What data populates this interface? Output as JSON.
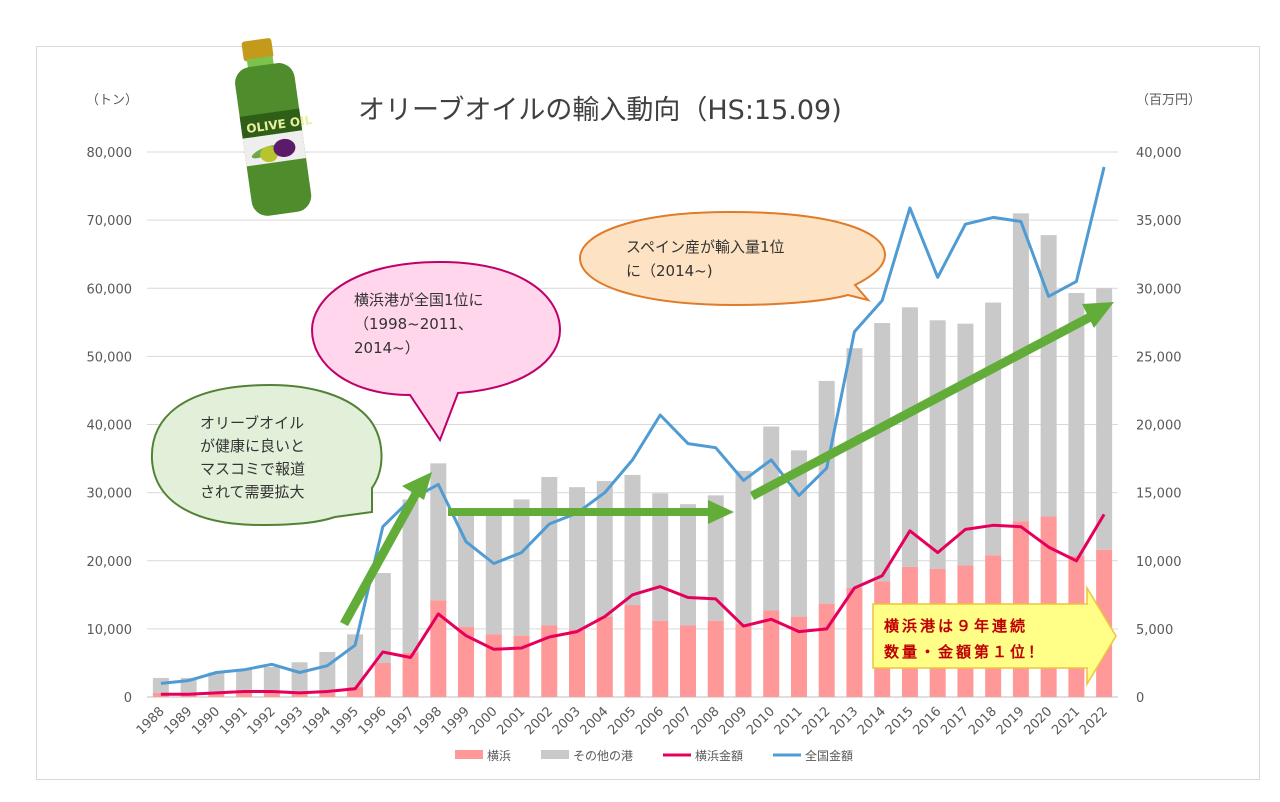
{
  "chart_data": {
    "type": "bar",
    "subtype": "stacked bar + dual-axis line",
    "title": "オリーブオイルの輸入動向（HS:15.09)",
    "xlabel": "",
    "ylabel_left": "（トン）",
    "ylabel_right": "（百万円）",
    "ylim_left": [
      0,
      80000
    ],
    "ylim_right": [
      0,
      40000
    ],
    "yticks_left": [
      "0",
      "10,000",
      "20,000",
      "30,000",
      "40,000",
      "50,000",
      "60,000",
      "70,000",
      "80,000"
    ],
    "yticks_right": [
      "0",
      "5,000",
      "10,000",
      "15,000",
      "20,000",
      "25,000",
      "30,000",
      "35,000",
      "40,000"
    ],
    "grid": true,
    "legend_position": "bottom",
    "categories": [
      "1988",
      "1989",
      "1990",
      "1991",
      "1992",
      "1993",
      "1994",
      "1995",
      "1996",
      "1997",
      "1998",
      "1999",
      "2000",
      "2001",
      "2002",
      "2003",
      "2004",
      "2005",
      "2006",
      "2007",
      "2008",
      "2009",
      "2010",
      "2011",
      "2012",
      "2013",
      "2014",
      "2015",
      "2016",
      "2017",
      "2018",
      "2019",
      "2020",
      "2021",
      "2022"
    ],
    "series": [
      {
        "name": "横浜",
        "type": "bar",
        "stack": "volume",
        "axis": "left",
        "color": "#ff9999",
        "values": [
          600,
          500,
          700,
          700,
          700,
          700,
          600,
          1500,
          5000,
          6500,
          14200,
          10300,
          9200,
          9000,
          10500,
          9900,
          11800,
          13500,
          11200,
          10500,
          11200,
          10700,
          12700,
          11800,
          13700,
          16000,
          17000,
          19100,
          18800,
          19300,
          20800,
          25800,
          26500,
          20700,
          21600
        ]
      },
      {
        "name": "その他の港",
        "type": "bar",
        "stack": "volume",
        "axis": "left",
        "color": "#c9c9c9",
        "values": [
          2200,
          2300,
          2900,
          3300,
          3700,
          4400,
          6000,
          7700,
          13200,
          22500,
          20100,
          17300,
          18000,
          20000,
          21800,
          20900,
          19900,
          19100,
          18700,
          17800,
          18400,
          22500,
          27000,
          24400,
          32700,
          35200,
          37900,
          38100,
          36500,
          35500,
          37100,
          45200,
          41300,
          38600,
          38400
        ]
      },
      {
        "name": "横浜金額",
        "type": "line",
        "axis": "right",
        "color": "#e6005c",
        "values": [
          200,
          200,
          300,
          400,
          400,
          300,
          400,
          600,
          3300,
          2900,
          6100,
          4500,
          3500,
          3600,
          4400,
          4800,
          5900,
          7500,
          8100,
          7300,
          7200,
          5200,
          5700,
          4800,
          5000,
          8000,
          8900,
          12200,
          10600,
          12300,
          12600,
          12500,
          11000,
          10000,
          13400
        ]
      },
      {
        "name": "全国金額",
        "type": "line",
        "axis": "right",
        "color": "#4f9bd4",
        "values": [
          1000,
          1200,
          1800,
          2000,
          2400,
          1800,
          2300,
          3800,
          12500,
          14500,
          15600,
          11400,
          9800,
          10600,
          12700,
          13500,
          15000,
          17400,
          20700,
          18600,
          18300,
          15900,
          17400,
          14800,
          16800,
          26800,
          29100,
          35900,
          30800,
          34700,
          35200,
          34900,
          29400,
          30500,
          38900
        ]
      }
    ],
    "annotations": [
      {
        "type": "callout",
        "color": "green",
        "text": [
          "オリーブオイル",
          "が健康に良いと",
          "マスコミで報道",
          "されて需要拡大"
        ]
      },
      {
        "type": "callout",
        "color": "pink",
        "text": [
          "横浜港が全国1位に",
          "（1998~2011、",
          "2014~）"
        ]
      },
      {
        "type": "callout",
        "color": "orange",
        "text": [
          "スペイン産が輸入量1位",
          "に（2014~)"
        ]
      },
      {
        "type": "banner",
        "color": "yellow",
        "text": [
          "横浜港は９年連続",
          "数量・金額第１位！"
        ]
      },
      {
        "type": "arrow",
        "from": "1995",
        "to": "1998",
        "meaning": "rising trend"
      },
      {
        "type": "arrow",
        "from": "1999",
        "to": "2009",
        "meaning": "flat trend"
      },
      {
        "type": "arrow",
        "from": "2009",
        "to": "2022",
        "meaning": "rising trend"
      }
    ]
  },
  "header": {
    "title": "オリーブオイルの輸入動向（HS:15.09)",
    "left_unit": "（トン）",
    "right_unit": "（百万円）"
  },
  "bottle": {
    "label": "OLIVE OIL"
  },
  "legend": [
    {
      "label": "横浜",
      "color": "#ff9999",
      "shape": "bar"
    },
    {
      "label": "その他の港",
      "color": "#c9c9c9",
      "shape": "bar"
    },
    {
      "label": "横浜金額",
      "color": "#e6005c",
      "shape": "line"
    },
    {
      "label": "全国金額",
      "color": "#4f9bd4",
      "shape": "line"
    }
  ],
  "callouts": {
    "health": {
      "lines": [
        "オリーブオイル",
        "が健康に良いと",
        "マスコミで報道",
        "されて需要拡大"
      ]
    },
    "yokohama_first": {
      "lines": [
        "横浜港が全国1位に",
        "（1998~2011、",
        "2014~）"
      ]
    },
    "spain_first": {
      "lines": [
        "スペイン産が輸入量1位",
        "に（2014~)"
      ]
    },
    "banner": {
      "lines": [
        "横浜港は９年連続",
        "数量・金額第１位！"
      ]
    }
  },
  "colors": {
    "yokohama_bar": "#ff9999",
    "other_bar": "#c9c9c9",
    "yokohama_line": "#e6005c",
    "national_line": "#4f9bd4",
    "arrow_green": "#62ad3a",
    "grid": "#d9d9d9"
  }
}
